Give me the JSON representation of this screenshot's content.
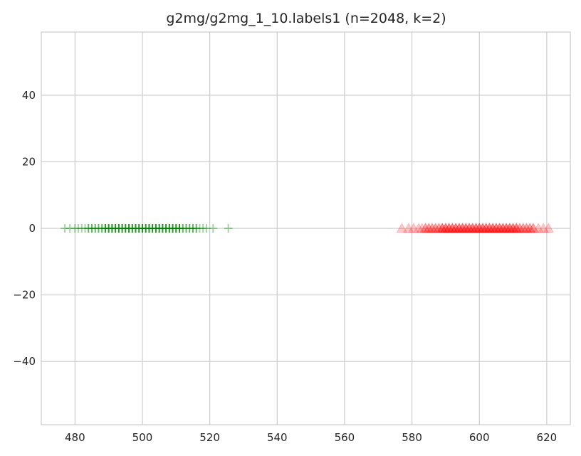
{
  "chart_data": {
    "type": "scatter",
    "title": "g2mg/g2mg_1_10.labels1 (n=2048, k=2)",
    "xlabel": "",
    "ylabel": "",
    "xlim": [
      470,
      627
    ],
    "ylim": [
      -59,
      59
    ],
    "x_ticks": [
      480,
      500,
      520,
      540,
      560,
      580,
      600,
      620
    ],
    "y_ticks": [
      40,
      20,
      0,
      -20,
      -40
    ],
    "x_tick_labels": [
      "480",
      "500",
      "520",
      "540",
      "560",
      "580",
      "600",
      "620"
    ],
    "y_tick_labels": [
      "40",
      "20",
      "0",
      "−20",
      "−40"
    ],
    "grid": true,
    "legend": "none",
    "series": [
      {
        "marker": "plus",
        "color": "#008000",
        "x_range": [
          477,
          526
        ],
        "center": 500,
        "spread": 7,
        "y": 0,
        "x": [
          477,
          478.5,
          480,
          481,
          482,
          483,
          484,
          485,
          486,
          487,
          488,
          489,
          490,
          491,
          492,
          493,
          494,
          495,
          496,
          497,
          498,
          499,
          500,
          501,
          502,
          503,
          504,
          505,
          506,
          507,
          508,
          509,
          510,
          511,
          512,
          513,
          514,
          515,
          516,
          517,
          518,
          519,
          521,
          525.5
        ]
      },
      {
        "marker": "triangle",
        "color": "#ff0000",
        "x_range": [
          577,
          620.5
        ],
        "center": 600,
        "spread": 7,
        "y": 0,
        "x": [
          577,
          579,
          580.5,
          582,
          583,
          584,
          585,
          586,
          587,
          588,
          589,
          590,
          591,
          592,
          593,
          594,
          595,
          596,
          597,
          598,
          599,
          600,
          601,
          602,
          603,
          604,
          605,
          606,
          607,
          608,
          609,
          610,
          611,
          612,
          613,
          614,
          615,
          616,
          617.5,
          619,
          620.5
        ]
      }
    ]
  }
}
